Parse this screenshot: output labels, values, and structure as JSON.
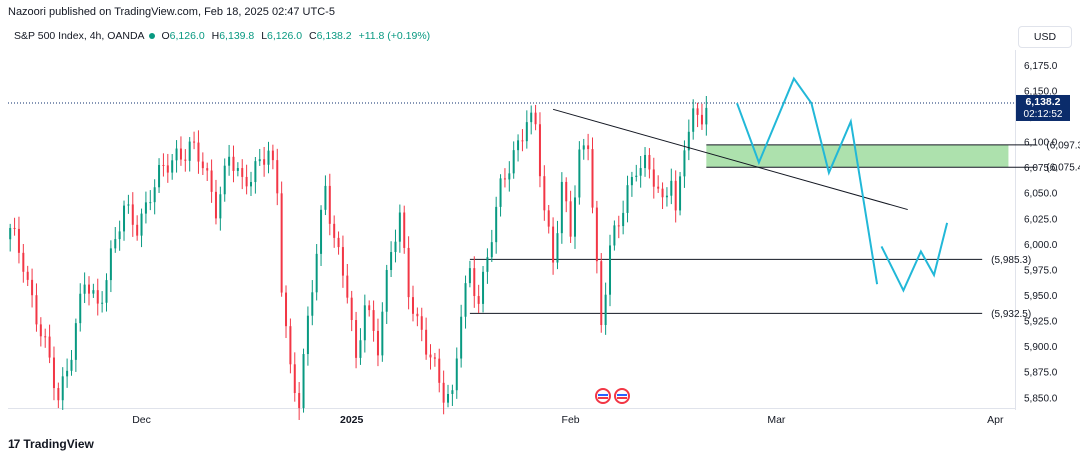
{
  "header": {
    "publisher": "Nazoori published on TradingView.com, Feb 18, 2025 02:47 UTC-5"
  },
  "symbol": {
    "name": "S&P 500 Index, 4h, OANDA",
    "open_label": "O",
    "open": "6,126.0",
    "high_label": "H",
    "high": "6,139.8",
    "low_label": "L",
    "low": "6,126.0",
    "close_label": "C",
    "close": "6,138.2",
    "change": "+11.8 (+0.19%)"
  },
  "currency_button": "USD",
  "footer": {
    "brand": "TradingView",
    "logo": "17"
  },
  "colors": {
    "up": "#089981",
    "down": "#f23645",
    "projection": "#22b8d8",
    "zone": "#9fdc9f",
    "trend": "#131722",
    "price_badge": "#0b2c6b"
  },
  "chart_data": {
    "type": "candlestick",
    "interval": "4h",
    "y_axis": {
      "min": 5840,
      "max": 6190,
      "ticks": [
        "6,175.0",
        "6,150.0",
        "6,125.0",
        "6,100.0",
        "6,075.0",
        "6,050.0",
        "6,025.0",
        "6,000.0",
        "5,975.0",
        "5,950.0",
        "5,925.0",
        "5,900.0",
        "5,875.0",
        "5,850.0"
      ],
      "tick_values": [
        6175,
        6150,
        6125,
        6100,
        6075,
        6050,
        6025,
        6000,
        5975,
        5950,
        5925,
        5900,
        5875,
        5850
      ]
    },
    "x_axis": {
      "labels": [
        "Dec",
        "2025",
        "Feb",
        "Mar",
        "Apr"
      ],
      "label_index": [
        30,
        78,
        128,
        175,
        225
      ],
      "bars_total": 230
    },
    "last_price": {
      "value": 6138.2,
      "label": "6,138.2",
      "countdown": "02:12:52"
    },
    "close_path": [
      {
        "i": 0,
        "v": 6010
      },
      {
        "i": 3,
        "v": 5985
      },
      {
        "i": 6,
        "v": 5930
      },
      {
        "i": 9,
        "v": 5880
      },
      {
        "i": 11,
        "v": 5850
      },
      {
        "i": 14,
        "v": 5900
      },
      {
        "i": 17,
        "v": 5960
      },
      {
        "i": 20,
        "v": 5940
      },
      {
        "i": 23,
        "v": 5990
      },
      {
        "i": 26,
        "v": 6030
      },
      {
        "i": 29,
        "v": 6020
      },
      {
        "i": 32,
        "v": 6050
      },
      {
        "i": 35,
        "v": 6070
      },
      {
        "i": 38,
        "v": 6090
      },
      {
        "i": 41,
        "v": 6095
      },
      {
        "i": 44,
        "v": 6075
      },
      {
        "i": 47,
        "v": 6040
      },
      {
        "i": 50,
        "v": 6085
      },
      {
        "i": 53,
        "v": 6055
      },
      {
        "i": 56,
        "v": 6080
      },
      {
        "i": 59,
        "v": 6090
      },
      {
        "i": 61,
        "v": 6045
      },
      {
        "i": 62,
        "v": 5960
      },
      {
        "i": 64,
        "v": 5880
      },
      {
        "i": 66,
        "v": 5850
      },
      {
        "i": 68,
        "v": 5920
      },
      {
        "i": 70,
        "v": 5990
      },
      {
        "i": 72,
        "v": 6060
      },
      {
        "i": 74,
        "v": 6010
      },
      {
        "i": 77,
        "v": 5950
      },
      {
        "i": 79,
        "v": 5880
      },
      {
        "i": 81,
        "v": 5950
      },
      {
        "i": 84,
        "v": 5900
      },
      {
        "i": 87,
        "v": 5990
      },
      {
        "i": 89,
        "v": 6030
      },
      {
        "i": 91,
        "v": 5960
      },
      {
        "i": 93,
        "v": 5920
      },
      {
        "i": 95,
        "v": 5895
      },
      {
        "i": 97,
        "v": 5880
      },
      {
        "i": 99,
        "v": 5860
      },
      {
        "i": 101,
        "v": 5850
      },
      {
        "i": 103,
        "v": 5930
      },
      {
        "i": 105,
        "v": 5970
      },
      {
        "i": 107,
        "v": 5950
      },
      {
        "i": 110,
        "v": 6010
      },
      {
        "i": 112,
        "v": 6050
      },
      {
        "i": 115,
        "v": 6090
      },
      {
        "i": 118,
        "v": 6125
      },
      {
        "i": 120,
        "v": 6110
      },
      {
        "i": 122,
        "v": 6030
      },
      {
        "i": 124,
        "v": 5990
      },
      {
        "i": 126,
        "v": 6060
      },
      {
        "i": 128,
        "v": 6010
      },
      {
        "i": 130,
        "v": 6080
      },
      {
        "i": 132,
        "v": 6105
      },
      {
        "i": 134,
        "v": 5980
      },
      {
        "i": 135,
        "v": 5925
      },
      {
        "i": 137,
        "v": 5990
      },
      {
        "i": 139,
        "v": 6020
      },
      {
        "i": 141,
        "v": 6055
      },
      {
        "i": 143,
        "v": 6080
      },
      {
        "i": 145,
        "v": 6075
      },
      {
        "i": 147,
        "v": 6060
      },
      {
        "i": 149,
        "v": 6040
      },
      {
        "i": 151,
        "v": 6075
      },
      {
        "i": 152,
        "v": 6030
      },
      {
        "i": 153,
        "v": 6060
      },
      {
        "i": 154,
        "v": 6095
      },
      {
        "i": 156,
        "v": 6120
      },
      {
        "i": 158,
        "v": 6130
      },
      {
        "i": 159,
        "v": 6138.2
      }
    ],
    "zones": [
      {
        "label": "(6,097.3)",
        "top": 6097.3,
        "bottom": 6075.4,
        "label_bottom": "(6,075.4)",
        "from_i": 159,
        "to_i": 228
      }
    ],
    "levels": [
      {
        "label": "(5,985.3)",
        "value": 5985.3,
        "from_i": 105,
        "to_i": 222
      },
      {
        "label": "(5,932.5)",
        "value": 5932.5,
        "from_i": 105,
        "to_i": 222
      }
    ],
    "trendline": {
      "from": {
        "i": 124,
        "v": 6132
      },
      "to": {
        "i": 205,
        "v": 6034
      }
    },
    "projection_1": [
      {
        "i": 166,
        "v": 6138
      },
      {
        "i": 171,
        "v": 6080
      },
      {
        "i": 179,
        "v": 6162
      },
      {
        "i": 183,
        "v": 6138
      },
      {
        "i": 187,
        "v": 6070
      },
      {
        "i": 192,
        "v": 6120
      },
      {
        "i": 198,
        "v": 5961
      }
    ],
    "projection_2": [
      {
        "i": 199,
        "v": 5998
      },
      {
        "i": 204,
        "v": 5955
      },
      {
        "i": 208,
        "v": 5993
      },
      {
        "i": 211,
        "v": 5970
      },
      {
        "i": 214,
        "v": 6021
      }
    ]
  }
}
